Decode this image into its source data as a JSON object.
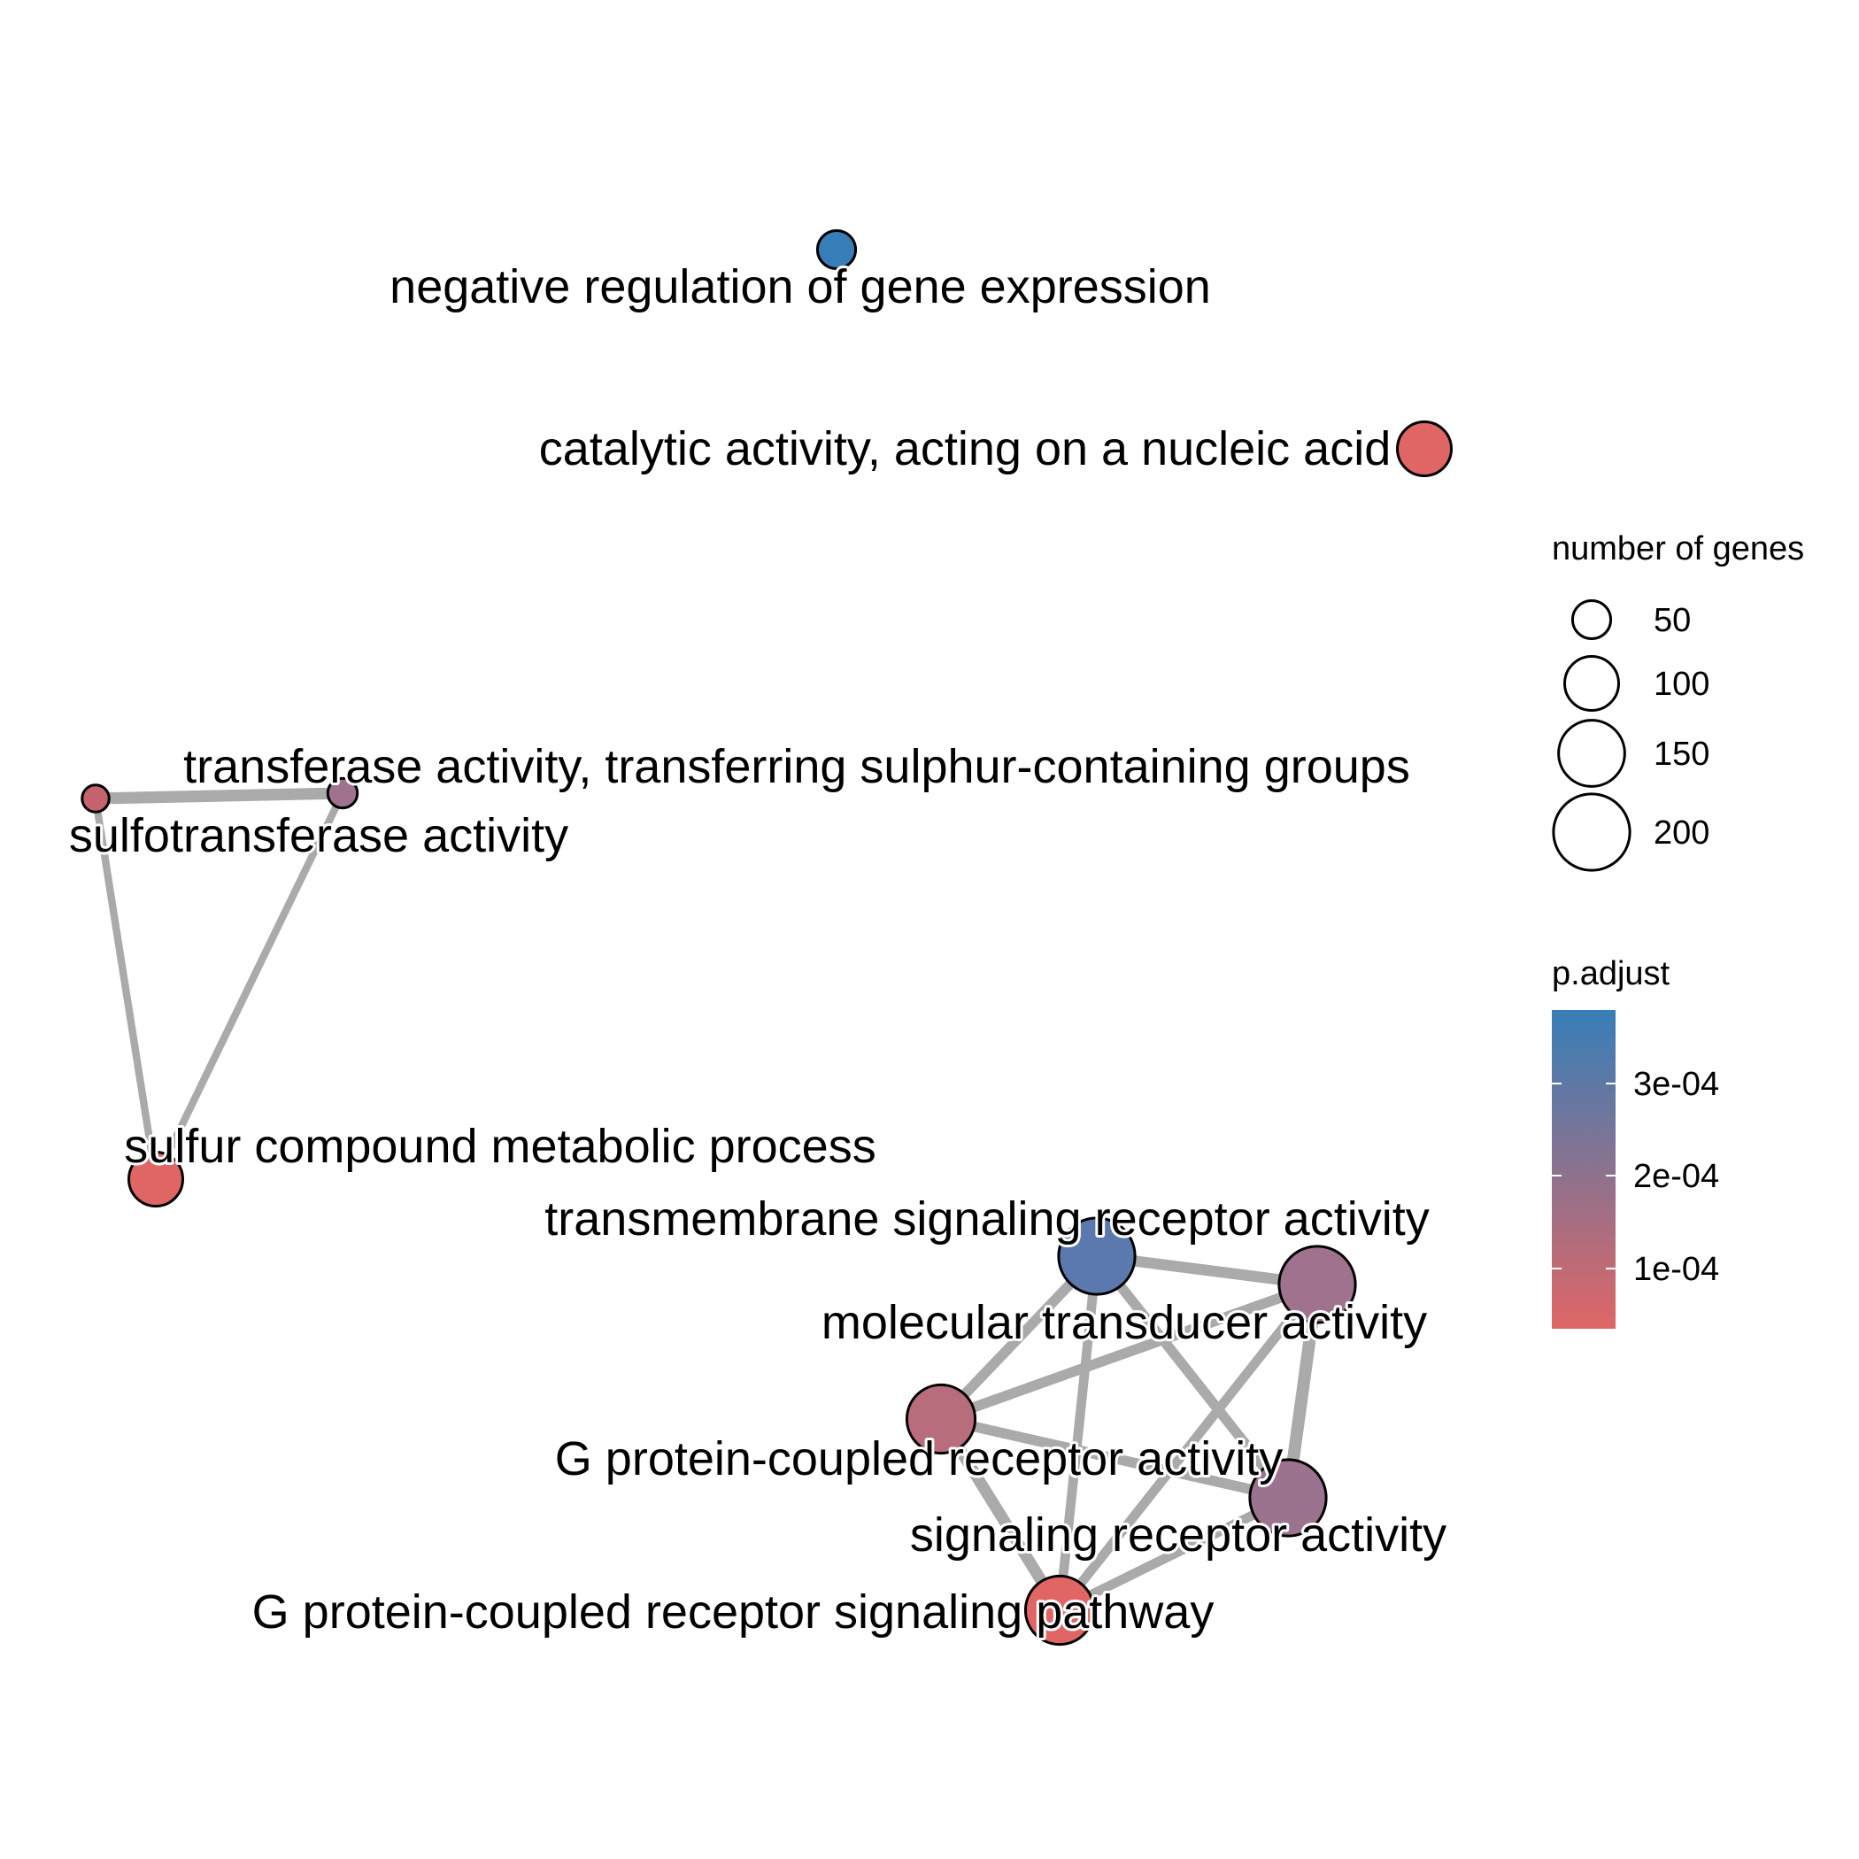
{
  "nodes": [
    {
      "id": "neg_reg",
      "label": "negative regulation of gene expression",
      "size": 50,
      "color": "#377EB8"
    },
    {
      "id": "catalytic",
      "label": "catalytic activity, acting on a nucleic acid",
      "size": 100,
      "color": "#E06666"
    },
    {
      "id": "transferase",
      "label": "transferase activity, transferring sulphur-containing groups",
      "size": 30,
      "color": "#A0728E"
    },
    {
      "id": "sulfotransferase",
      "label": "sulfotransferase activity",
      "size": 25,
      "color": "#C5646F"
    },
    {
      "id": "sulfur",
      "label": "sulfur compound metabolic process",
      "size": 100,
      "color": "#E06666"
    },
    {
      "id": "transmembrane",
      "label": "transmembrane signaling receptor activity",
      "size": 200,
      "color": "#5B79AE"
    },
    {
      "id": "molecular",
      "label": "molecular transducer activity",
      "size": 200,
      "color": "#A0728E"
    },
    {
      "id": "gpcr_act",
      "label": "G protein-coupled receptor activity",
      "size": 160,
      "color": "#B86D7C"
    },
    {
      "id": "signaling",
      "label": "signaling receptor activity",
      "size": 200,
      "color": "#9C738F"
    },
    {
      "id": "gpcr_path",
      "label": "G protein-coupled receptor signaling pathway",
      "size": 160,
      "color": "#E06666"
    }
  ],
  "edges": [
    {
      "source": "sulfotransferase",
      "target": "transferase",
      "weight": 0.9
    },
    {
      "source": "sulfotransferase",
      "target": "sulfur",
      "weight": 0.3
    },
    {
      "source": "transferase",
      "target": "sulfur",
      "weight": 0.3
    },
    {
      "source": "transmembrane",
      "target": "molecular",
      "weight": 0.8
    },
    {
      "source": "transmembrane",
      "target": "gpcr_act",
      "weight": 0.7
    },
    {
      "source": "transmembrane",
      "target": "signaling",
      "weight": 0.7
    },
    {
      "source": "transmembrane",
      "target": "gpcr_path",
      "weight": 0.6
    },
    {
      "source": "molecular",
      "target": "gpcr_act",
      "weight": 0.7
    },
    {
      "source": "molecular",
      "target": "signaling",
      "weight": 1.0
    },
    {
      "source": "molecular",
      "target": "gpcr_path",
      "weight": 0.6
    },
    {
      "source": "gpcr_act",
      "target": "signaling",
      "weight": 0.7
    },
    {
      "source": "gpcr_act",
      "target": "gpcr_path",
      "weight": 0.9
    },
    {
      "source": "signaling",
      "target": "gpcr_path",
      "weight": 0.6
    }
  ],
  "edge_color": "#AAAAAA",
  "legend": {
    "size_title": "number of genes",
    "size_items": [
      {
        "value": 50,
        "label": "50"
      },
      {
        "value": 100,
        "label": "100"
      },
      {
        "value": 150,
        "label": "150"
      },
      {
        "value": 200,
        "label": "200"
      }
    ],
    "color_title": "p.adjust",
    "color_low": "#E06666",
    "color_high": "#377EB8",
    "color_ticks": [
      {
        "value": 0.0001,
        "label": "1e-04"
      },
      {
        "value": 0.0002,
        "label": "2e-04"
      },
      {
        "value": 0.0003,
        "label": "3e-04"
      }
    ]
  }
}
